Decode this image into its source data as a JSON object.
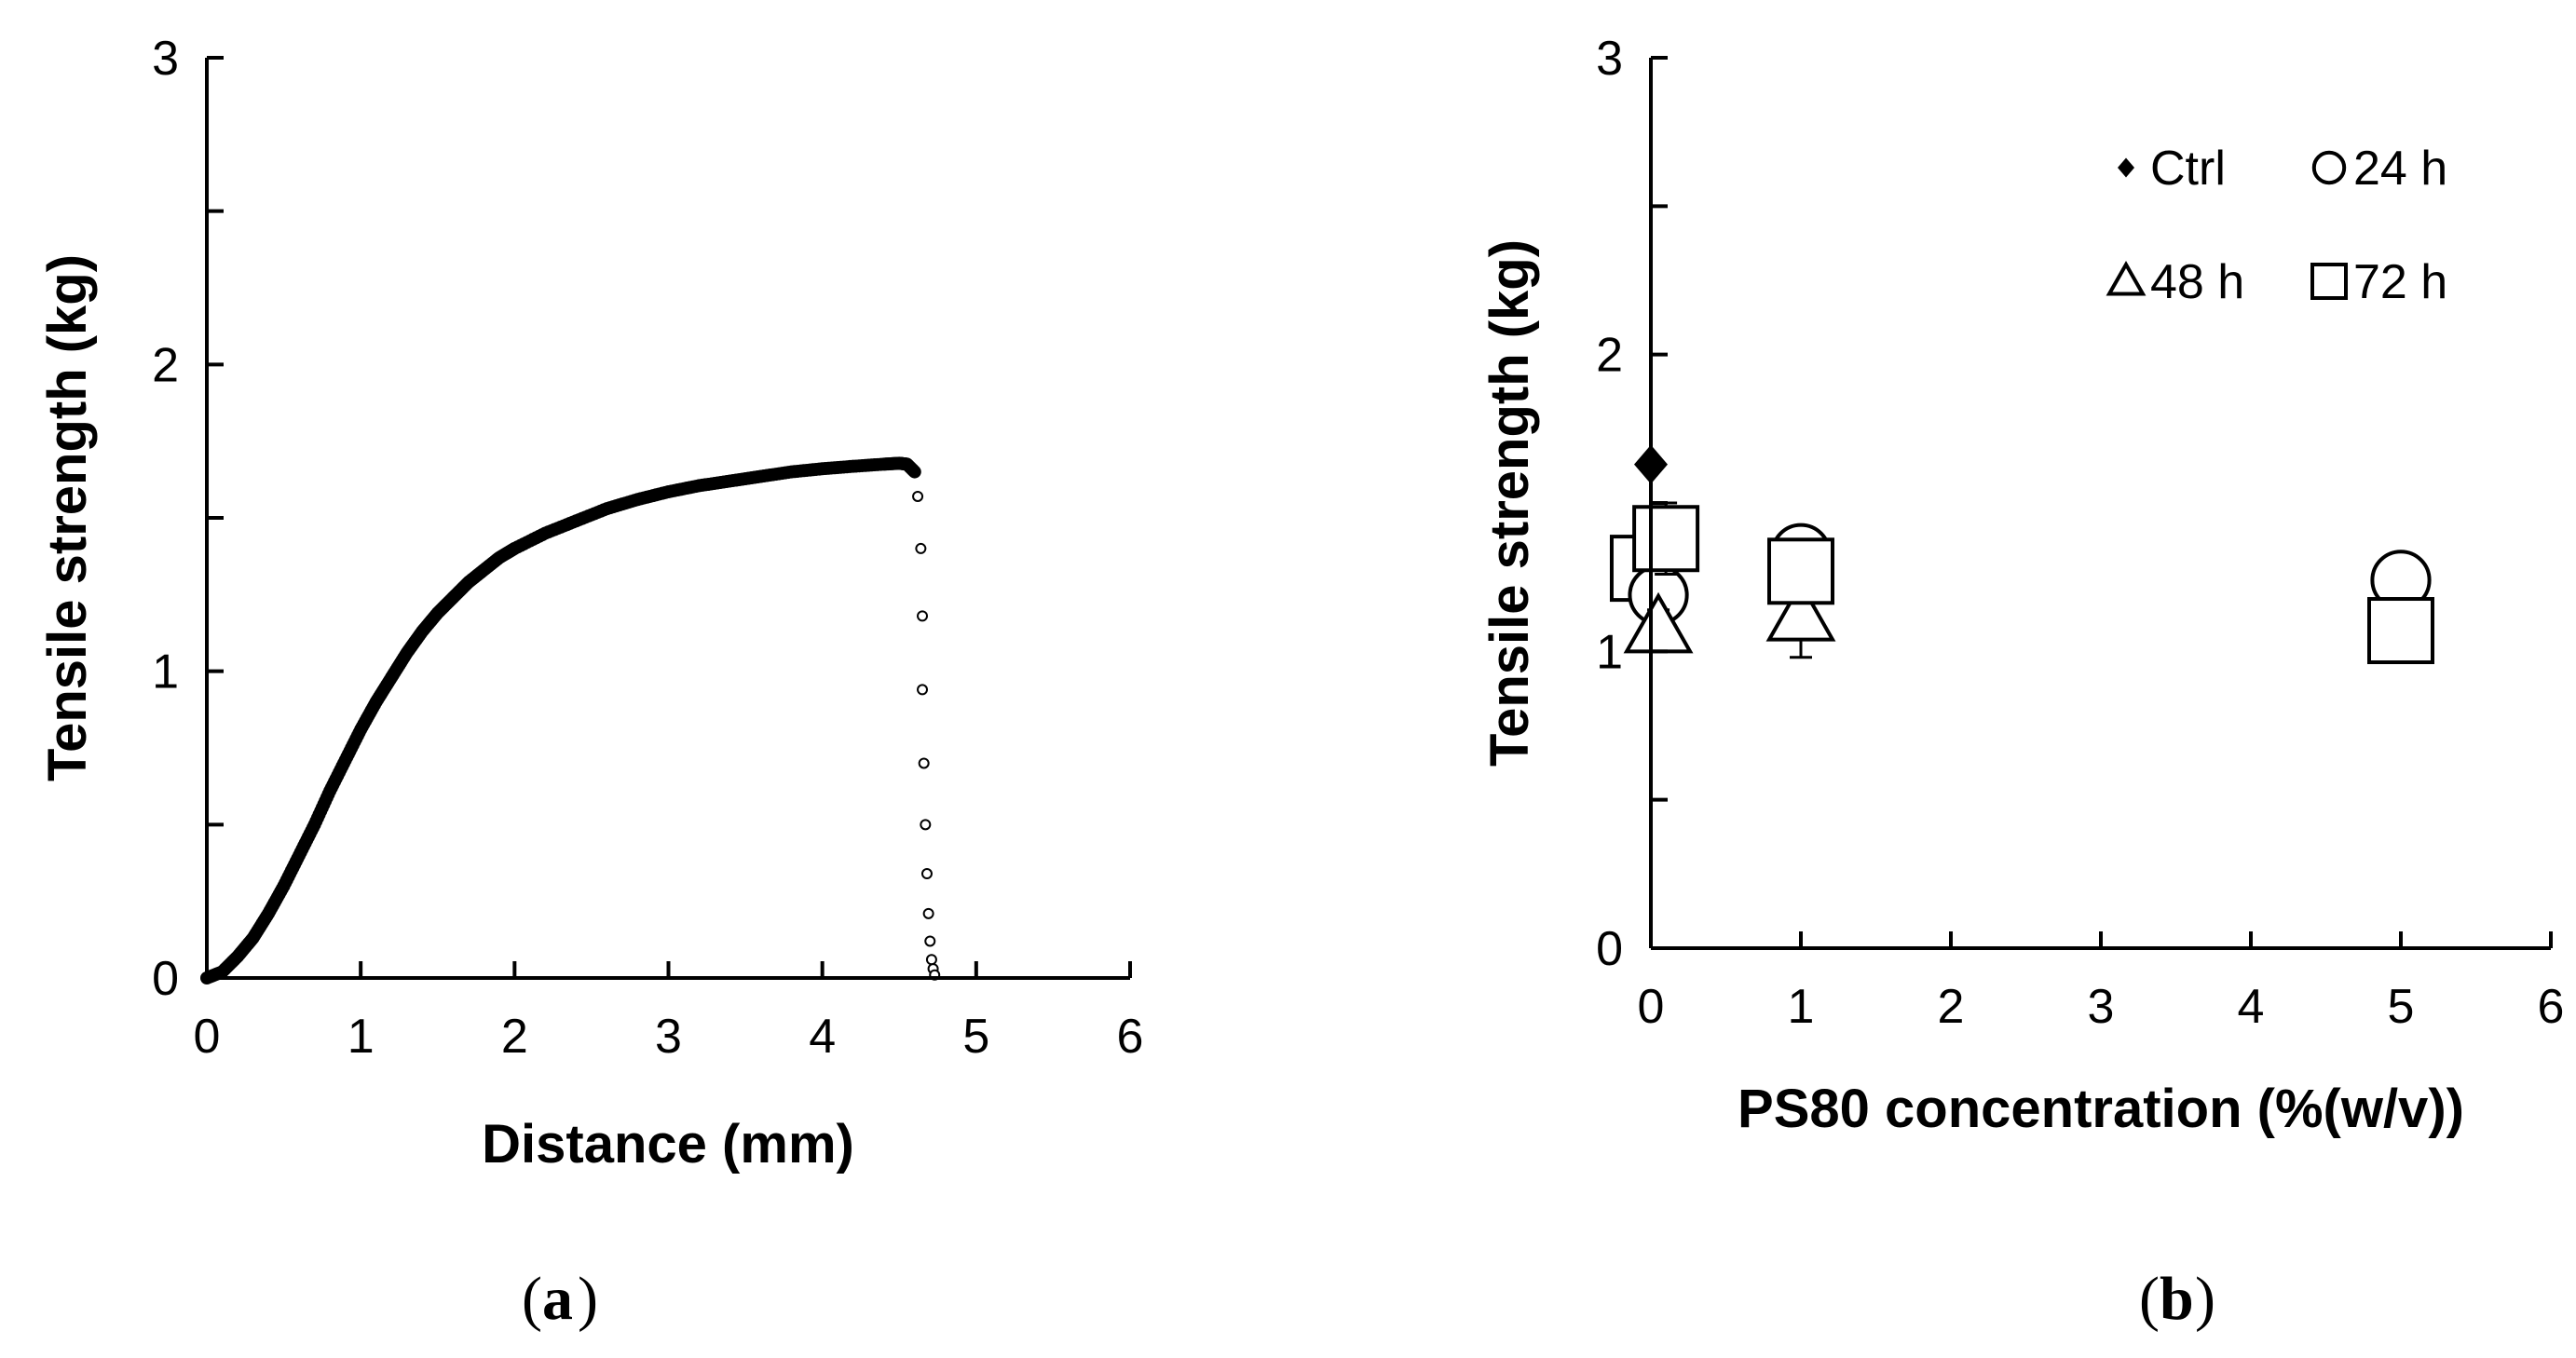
{
  "chart_data": [
    {
      "type": "scatter",
      "panel": "a",
      "panel_label": "a",
      "xlabel": "Distance (mm)",
      "ylabel": "Tensile strength (kg)",
      "xlim": [
        0,
        6
      ],
      "ylim": [
        0,
        3
      ],
      "x_ticks": [
        "0",
        "1",
        "2",
        "3",
        "4",
        "5",
        "6"
      ],
      "y_ticks": [
        "0",
        "1",
        "2",
        "3"
      ],
      "curve": [
        [
          0.0,
          0.0
        ],
        [
          0.1,
          0.02
        ],
        [
          0.2,
          0.07
        ],
        [
          0.3,
          0.13
        ],
        [
          0.4,
          0.21
        ],
        [
          0.5,
          0.3
        ],
        [
          0.6,
          0.4
        ],
        [
          0.7,
          0.5
        ],
        [
          0.8,
          0.61
        ],
        [
          0.9,
          0.71
        ],
        [
          1.0,
          0.81
        ],
        [
          1.1,
          0.9
        ],
        [
          1.2,
          0.98
        ],
        [
          1.3,
          1.06
        ],
        [
          1.4,
          1.13
        ],
        [
          1.5,
          1.19
        ],
        [
          1.6,
          1.24
        ],
        [
          1.7,
          1.29
        ],
        [
          1.8,
          1.33
        ],
        [
          1.9,
          1.37
        ],
        [
          2.0,
          1.4
        ],
        [
          2.2,
          1.45
        ],
        [
          2.4,
          1.49
        ],
        [
          2.6,
          1.53
        ],
        [
          2.8,
          1.56
        ],
        [
          3.0,
          1.585
        ],
        [
          3.2,
          1.605
        ],
        [
          3.4,
          1.62
        ],
        [
          3.6,
          1.635
        ],
        [
          3.8,
          1.65
        ],
        [
          4.0,
          1.66
        ],
        [
          4.2,
          1.668
        ],
        [
          4.4,
          1.675
        ],
        [
          4.5,
          1.678
        ],
        [
          4.55,
          1.675
        ],
        [
          4.6,
          1.65
        ]
      ],
      "drop_points": [
        [
          4.62,
          1.57
        ],
        [
          4.64,
          1.4
        ],
        [
          4.65,
          1.18
        ],
        [
          4.65,
          0.94
        ],
        [
          4.66,
          0.7
        ],
        [
          4.67,
          0.5
        ],
        [
          4.68,
          0.34
        ],
        [
          4.69,
          0.21
        ],
        [
          4.7,
          0.12
        ],
        [
          4.71,
          0.06
        ],
        [
          4.72,
          0.03
        ],
        [
          4.73,
          0.01
        ]
      ]
    },
    {
      "type": "scatter",
      "panel": "b",
      "panel_label": "b",
      "xlabel": "PS80 concentration (%(w/v))",
      "ylabel": "Tensile strength (kg)",
      "xlim": [
        0,
        6
      ],
      "ylim": [
        0,
        3
      ],
      "x_ticks": [
        "0",
        "1",
        "2",
        "3",
        "4",
        "5",
        "6"
      ],
      "y_ticks": [
        "0",
        "1",
        "2",
        "3"
      ],
      "legend_position": "top-right",
      "series": [
        {
          "name": "Ctrl",
          "marker": "diamond-filled",
          "points": [
            {
              "x": 0,
              "y": 1.63,
              "err": 0
            }
          ]
        },
        {
          "name": "24 h",
          "marker": "circle-open",
          "points": [
            {
              "x": 0.05,
              "y": 1.19,
              "err": 0.08
            },
            {
              "x": 1,
              "y": 1.33,
              "err": 0.04
            },
            {
              "x": 5,
              "y": 1.24,
              "err": 0.04
            }
          ]
        },
        {
          "name": "48 h",
          "marker": "triangle-open",
          "points": [
            {
              "x": 0.05,
              "y": 1.08,
              "err": 0.06
            },
            {
              "x": 1,
              "y": 1.12,
              "err": 0.14
            }
          ]
        },
        {
          "name": "72 h",
          "marker": "square-open",
          "points": [
            {
              "x": 0.1,
              "y": 1.38,
              "err": 0.12
            },
            {
              "x": 1,
              "y": 1.27,
              "err": 0.05
            },
            {
              "x": 5,
              "y": 1.07,
              "err": 0.03
            }
          ]
        }
      ],
      "extra_marks": [
        {
          "x": -0.05,
          "y": 1.28,
          "marker": "square-open"
        }
      ]
    }
  ]
}
